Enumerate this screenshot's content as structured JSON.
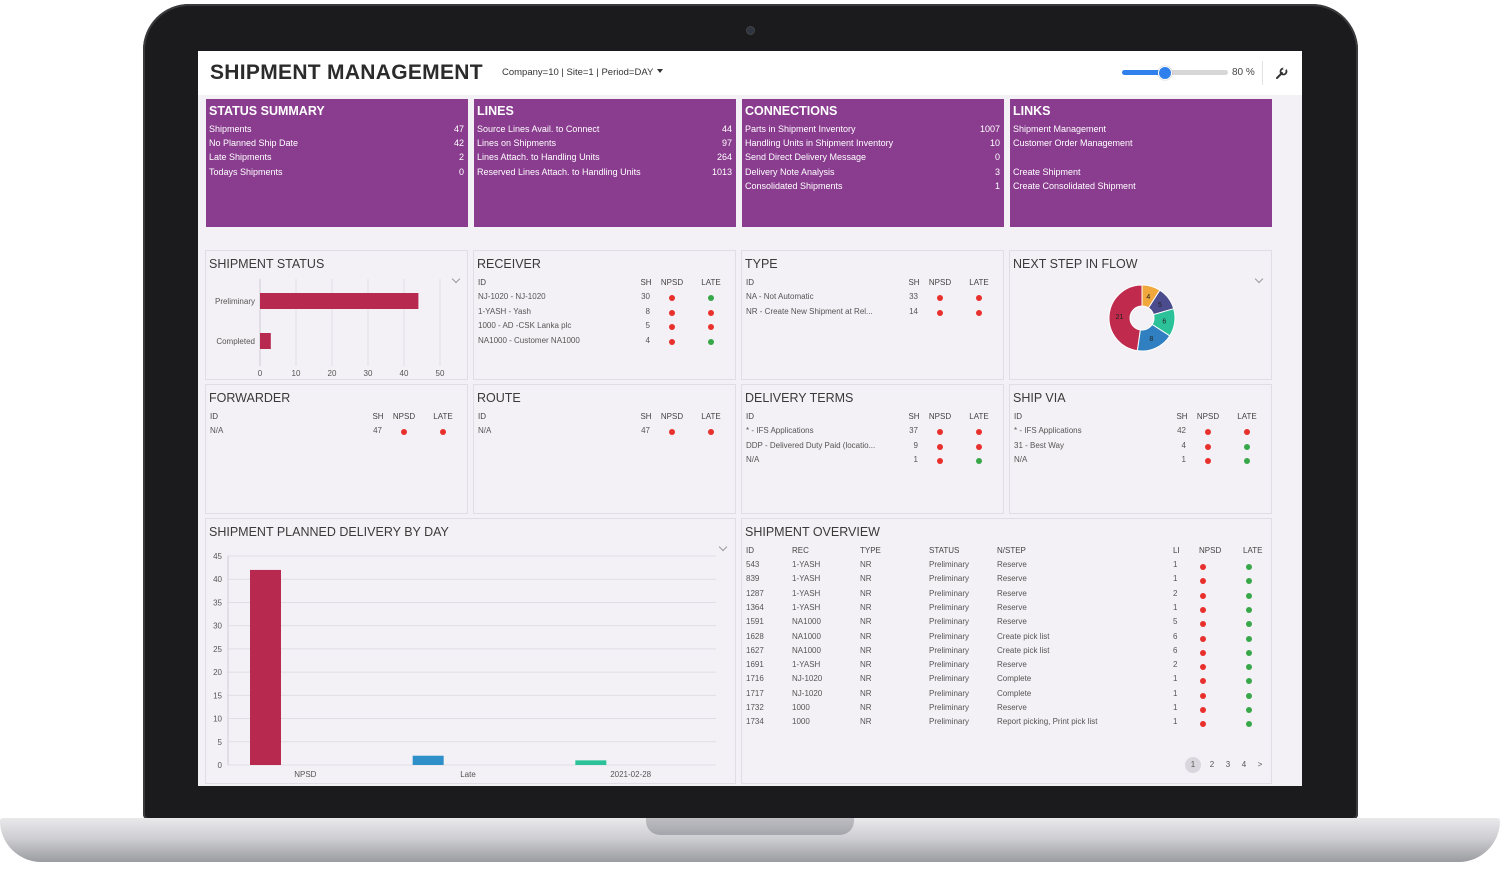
{
  "header": {
    "title": "SHIPMENT MANAGEMENT",
    "context": "Company=10 | Site=1 | Period=DAY",
    "zoom_label": "80 %",
    "zoom_value": 80
  },
  "summary_tiles": [
    {
      "title": "STATUS SUMMARY",
      "rows": [
        {
          "label": "Shipments",
          "value": "47"
        },
        {
          "label": "No Planned Ship Date",
          "value": "42"
        },
        {
          "label": "Late Shipments",
          "value": "2"
        },
        {
          "label": "Todays Shipments",
          "value": "0"
        }
      ]
    },
    {
      "title": "LINES",
      "rows": [
        {
          "label": "Source Lines Avail. to Connect",
          "value": "44"
        },
        {
          "label": "Lines on Shipments",
          "value": "97"
        },
        {
          "label": "Lines Attach. to Handling Units",
          "value": "264"
        },
        {
          "label": "Reserved Lines Attach. to Handling Units",
          "value": "1013"
        }
      ]
    },
    {
      "title": "CONNECTIONS",
      "rows": [
        {
          "label": "Parts in Shipment Inventory",
          "value": "1007"
        },
        {
          "label": "Handling Units in Shipment Inventory",
          "value": "10"
        },
        {
          "label": "Send Direct Delivery Message",
          "value": "0"
        },
        {
          "label": "Delivery Note Analysis",
          "value": "3"
        },
        {
          "label": "Consolidated Shipments",
          "value": "1"
        }
      ]
    },
    {
      "title": "LINKS",
      "rows": [
        {
          "label": "Shipment Management",
          "value": ""
        },
        {
          "label": "Customer Order Management",
          "value": ""
        },
        {
          "label": "",
          "value": ""
        },
        {
          "label": "Create Shipment",
          "value": ""
        },
        {
          "label": "Create Consolidated Shipment",
          "value": ""
        }
      ]
    }
  ],
  "shipment_status": {
    "title": "SHIPMENT STATUS",
    "chart_data": {
      "type": "bar",
      "orientation": "horizontal",
      "categories": [
        "Preliminary",
        "Completed"
      ],
      "values": [
        44,
        3
      ],
      "xlim": [
        0,
        50
      ],
      "xticks": [
        "0",
        "10",
        "20",
        "30",
        "40",
        "50"
      ],
      "grid": true,
      "color": "#b7294f"
    }
  },
  "receiver": {
    "title": "RECEIVER",
    "headers": [
      "ID",
      "SH",
      "NPSD",
      "LATE"
    ],
    "rows": [
      {
        "id": "NJ-1020 - NJ-1020",
        "sh": "30",
        "npsd": "red",
        "late": "green"
      },
      {
        "id": "1-YASH - Yash",
        "sh": "8",
        "npsd": "red",
        "late": "red"
      },
      {
        "id": "1000 - AD -CSK Lanka plc",
        "sh": "5",
        "npsd": "red",
        "late": "red"
      },
      {
        "id": "NA1000 - Customer NA1000",
        "sh": "4",
        "npsd": "red",
        "late": "green"
      }
    ]
  },
  "type_panel": {
    "title": "TYPE",
    "headers": [
      "ID",
      "SH",
      "NPSD",
      "LATE"
    ],
    "rows": [
      {
        "id": "NA - Not Automatic",
        "sh": "33",
        "npsd": "red",
        "late": "red"
      },
      {
        "id": "NR - Create New Shipment at Rel...",
        "sh": "14",
        "npsd": "red",
        "late": "red"
      }
    ]
  },
  "next_step": {
    "title": "NEXT STEP IN FLOW",
    "chart_data": {
      "type": "pie",
      "donut": true,
      "values": [
        4,
        5,
        6,
        8,
        21
      ],
      "labels": [
        "4",
        "5",
        "6",
        "8",
        "21"
      ],
      "colors": [
        "#f0a83c",
        "#4b4c8e",
        "#2bc29a",
        "#2f7fc1",
        "#c02a4d"
      ]
    }
  },
  "forwarder": {
    "title": "FORWARDER",
    "headers": [
      "ID",
      "SH",
      "NPSD",
      "LATE"
    ],
    "rows": [
      {
        "id": "N/A",
        "sh": "47",
        "npsd": "red",
        "late": "red"
      }
    ]
  },
  "route": {
    "title": "ROUTE",
    "headers": [
      "ID",
      "SH",
      "NPSD",
      "LATE"
    ],
    "rows": [
      {
        "id": "N/A",
        "sh": "47",
        "npsd": "red",
        "late": "red"
      }
    ]
  },
  "delivery_terms": {
    "title": "DELIVERY TERMS",
    "headers": [
      "ID",
      "SH",
      "NPSD",
      "LATE"
    ],
    "rows": [
      {
        "id": "* - IFS Applications",
        "sh": "37",
        "npsd": "red",
        "late": "red"
      },
      {
        "id": "DDP - Delivered Duty Paid (locatio...",
        "sh": "9",
        "npsd": "red",
        "late": "red"
      },
      {
        "id": "N/A",
        "sh": "1",
        "npsd": "red",
        "late": "green"
      }
    ]
  },
  "ship_via": {
    "title": "SHIP VIA",
    "headers": [
      "ID",
      "SH",
      "NPSD",
      "LATE"
    ],
    "rows": [
      {
        "id": "* - IFS Applications",
        "sh": "42",
        "npsd": "red",
        "late": "red"
      },
      {
        "id": "31 - Best Way",
        "sh": "4",
        "npsd": "red",
        "late": "green"
      },
      {
        "id": "N/A",
        "sh": "1",
        "npsd": "red",
        "late": "green"
      }
    ]
  },
  "planned_delivery": {
    "title": "SHIPMENT PLANNED DELIVERY BY DAY",
    "chart_data": {
      "type": "bar",
      "categories": [
        "NPSD",
        "Late",
        "2021-02-28"
      ],
      "values": [
        42,
        2,
        1
      ],
      "colors": [
        "#b7294f",
        "#2f8fc8",
        "#2bc29a"
      ],
      "ylim": [
        0,
        45
      ],
      "yticks": [
        "0",
        "5",
        "10",
        "15",
        "20",
        "25",
        "30",
        "35",
        "40",
        "45"
      ],
      "grid": true
    }
  },
  "overview": {
    "title": "SHIPMENT OVERVIEW",
    "headers": [
      "ID",
      "REC",
      "TYPE",
      "STATUS",
      "N/STEP",
      "LI",
      "NPSD",
      "LATE"
    ],
    "rows": [
      {
        "id": "543",
        "rec": "1-YASH",
        "type": "NR",
        "status": "Preliminary",
        "step": "Reserve",
        "li": "1",
        "npsd": "red",
        "late": "green"
      },
      {
        "id": "839",
        "rec": "1-YASH",
        "type": "NR",
        "status": "Preliminary",
        "step": "Reserve",
        "li": "1",
        "npsd": "red",
        "late": "green"
      },
      {
        "id": "1287",
        "rec": "1-YASH",
        "type": "NR",
        "status": "Preliminary",
        "step": "Reserve",
        "li": "2",
        "npsd": "red",
        "late": "green"
      },
      {
        "id": "1364",
        "rec": "1-YASH",
        "type": "NR",
        "status": "Preliminary",
        "step": "Reserve",
        "li": "1",
        "npsd": "red",
        "late": "green"
      },
      {
        "id": "1591",
        "rec": "NA1000",
        "type": "NR",
        "status": "Preliminary",
        "step": "Reserve",
        "li": "5",
        "npsd": "red",
        "late": "green"
      },
      {
        "id": "1628",
        "rec": "NA1000",
        "type": "NR",
        "status": "Preliminary",
        "step": "Create pick list",
        "li": "6",
        "npsd": "red",
        "late": "green"
      },
      {
        "id": "1627",
        "rec": "NA1000",
        "type": "NR",
        "status": "Preliminary",
        "step": "Create pick list",
        "li": "6",
        "npsd": "red",
        "late": "green"
      },
      {
        "id": "1691",
        "rec": "1-YASH",
        "type": "NR",
        "status": "Preliminary",
        "step": "Reserve",
        "li": "2",
        "npsd": "red",
        "late": "green"
      },
      {
        "id": "1716",
        "rec": "NJ-1020",
        "type": "NR",
        "status": "Preliminary",
        "step": "Complete",
        "li": "1",
        "npsd": "red",
        "late": "green"
      },
      {
        "id": "1717",
        "rec": "NJ-1020",
        "type": "NR",
        "status": "Preliminary",
        "step": "Complete",
        "li": "1",
        "npsd": "red",
        "late": "green"
      },
      {
        "id": "1732",
        "rec": "1000",
        "type": "NR",
        "status": "Preliminary",
        "step": "Reserve",
        "li": "1",
        "npsd": "red",
        "late": "green"
      },
      {
        "id": "1734",
        "rec": "1000",
        "type": "NR",
        "status": "Preliminary",
        "step": "Report picking, Print pick list",
        "li": "1",
        "npsd": "red",
        "late": "green"
      }
    ],
    "pagination": [
      "1",
      "2",
      "3",
      "4",
      ">"
    ],
    "current_page": "1"
  }
}
